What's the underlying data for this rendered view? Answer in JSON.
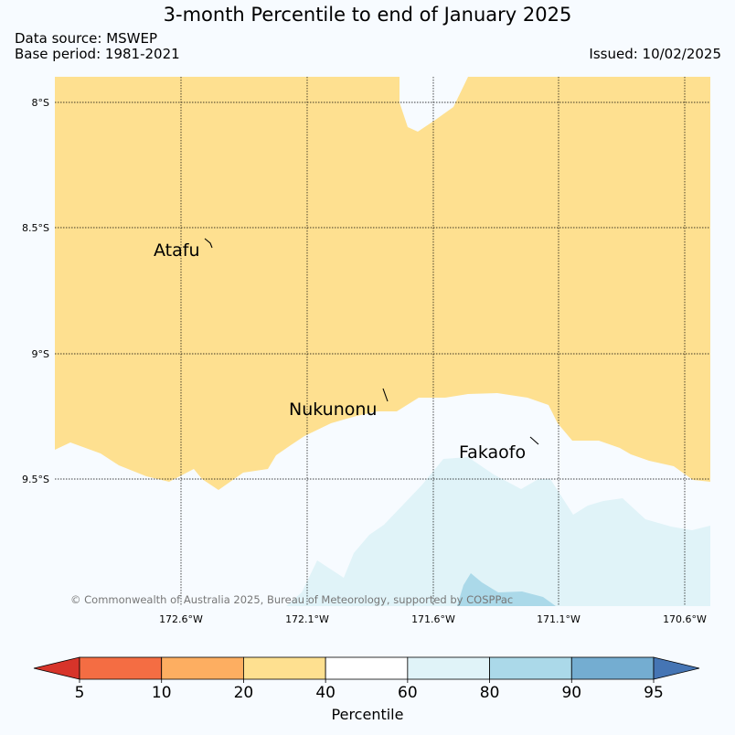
{
  "title": "3-month Percentile to end of January 2025",
  "source_line": "Data source: MSWEP",
  "base_line": "Base period: 1981-2021",
  "issued": "Issued: 10/02/2025",
  "map": {
    "lat_labels": [
      "8°S",
      "8.5°S",
      "9°S",
      "9.5°S"
    ],
    "lon_labels": [
      "172.6°W",
      "172.1°W",
      "171.6°W",
      "171.1°W",
      "170.6°W"
    ],
    "places": [
      "Atafu",
      "Nukunonu",
      "Fakaofo"
    ],
    "credit": "© Commonwealth of Australia 2025, Bureau of Meteorology, supported by COSPPac"
  },
  "colorbar": {
    "title": "Percentile",
    "ticks": [
      "5",
      "10",
      "20",
      "40",
      "60",
      "80",
      "90",
      "95"
    ],
    "colors": [
      "#d7342a",
      "#f46d43",
      "#fdae61",
      "#fee090",
      "#ffffff",
      "#e0f3f8",
      "#abd9e9",
      "#74add1",
      "#4575b4"
    ]
  }
}
